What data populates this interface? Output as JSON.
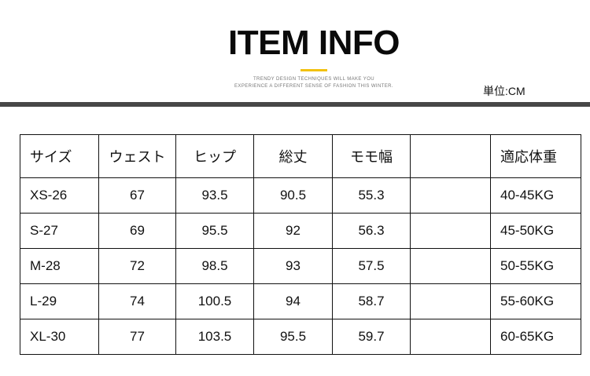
{
  "header": {
    "title": "ITEM INFO",
    "tagline_line1": "TRENDY DESIGN TECHNIQUES WILL MAKE YOU",
    "tagline_line2": "EXPERIENCE A DIFFERENT SENSE OF FASHION THIS WINTER.",
    "accent_color": "#f2c10f",
    "unit": "単位:CM"
  },
  "table": {
    "columns": [
      "サイズ",
      "ウェスト",
      "ヒップ",
      "総丈",
      "モモ幅",
      "",
      "適応体重"
    ],
    "rows": [
      [
        "XS-26",
        "67",
        "93.5",
        "90.5",
        "55.3",
        "",
        "40-45KG"
      ],
      [
        "S-27",
        "69",
        "95.5",
        "92",
        "56.3",
        "",
        "45-50KG"
      ],
      [
        "M-28",
        "72",
        "98.5",
        "93",
        "57.5",
        "",
        "50-55KG"
      ],
      [
        "L-29",
        "74",
        "100.5",
        "94",
        "58.7",
        "",
        "55-60KG"
      ],
      [
        "XL-30",
        "77",
        "103.5",
        "95.5",
        "59.7",
        "",
        "60-65KG"
      ]
    ]
  }
}
